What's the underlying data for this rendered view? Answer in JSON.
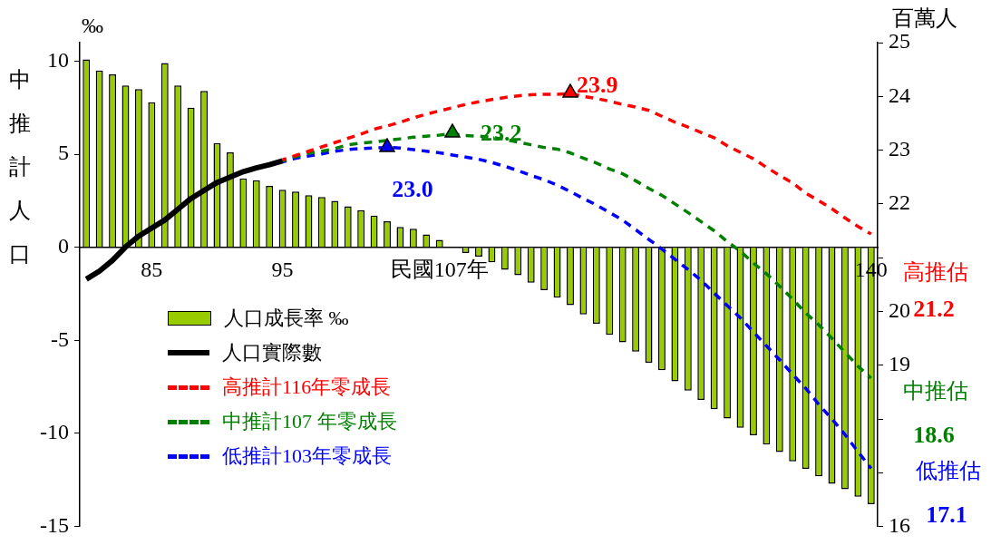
{
  "chart_data": {
    "type": "bar",
    "ylabel": "‰",
    "y2label": "百萬人",
    "categories": [
      null,
      null,
      null,
      null,
      null,
      "85",
      null,
      null,
      null,
      null,
      null,
      null,
      null,
      null,
      null,
      "95",
      null,
      null,
      null,
      null,
      null,
      null,
      null,
      null,
      null,
      null,
      null,
      "民國107年",
      null,
      null,
      null,
      null,
      null,
      null,
      null,
      null,
      null,
      null,
      null,
      null,
      null,
      null,
      null,
      null,
      null,
      null,
      null,
      null,
      null,
      null,
      null,
      null,
      null,
      null,
      null,
      null,
      null,
      null,
      null,
      null,
      "140"
    ],
    "series": [
      {
        "name": "人口成長率 ‰",
        "color": "#99cc00",
        "values": [
          10.1,
          9.5,
          9.3,
          8.7,
          8.5,
          7.8,
          9.9,
          8.7,
          7.5,
          8.4,
          5.6,
          5.1,
          3.7,
          3.6,
          3.3,
          3.1,
          3.0,
          2.8,
          2.7,
          2.5,
          2.2,
          2.0,
          1.7,
          1.4,
          1.1,
          1.0,
          0.7,
          0.4,
          0,
          -0.3,
          -0.5,
          -0.8,
          -1.2,
          -1.5,
          -1.9,
          -2.3,
          -2.7,
          -3.1,
          -3.6,
          -4.1,
          -4.7,
          -5.1,
          -5.6,
          -6.2,
          -6.6,
          -7.2,
          -7.7,
          -8.2,
          -8.7,
          -9.2,
          -9.7,
          -10.1,
          -10.6,
          -11.0,
          -11.5,
          -11.9,
          -12.3,
          -12.7,
          -13.0,
          -13.4,
          -13.8
        ]
      },
      {
        "name": "人口實際數",
        "type": "line",
        "axis": "y2",
        "color": "#000000",
        "line_style": "solid",
        "values": [
          20.6,
          20.75,
          20.95,
          21.2,
          21.4,
          21.55,
          21.7,
          21.9,
          22.1,
          22.25,
          22.4,
          22.5,
          22.6,
          22.67,
          22.73,
          22.8,
          null,
          null,
          null,
          null,
          null,
          null,
          null,
          null,
          null,
          null,
          null,
          null,
          null,
          null,
          null,
          null,
          null,
          null,
          null,
          null,
          null,
          null,
          null,
          null,
          null,
          null,
          null,
          null,
          null,
          null,
          null,
          null,
          null,
          null,
          null,
          null,
          null,
          null,
          null,
          null,
          null,
          null,
          null,
          null,
          null
        ]
      },
      {
        "name": "高推計116年零成長",
        "type": "line",
        "axis": "y2",
        "color": "#ff0000",
        "line_style": "dashed",
        "values": [
          null,
          null,
          null,
          null,
          null,
          null,
          null,
          null,
          null,
          null,
          null,
          null,
          null,
          null,
          null,
          22.82,
          22.9,
          22.98,
          23.06,
          23.14,
          23.22,
          23.3,
          23.39,
          23.45,
          23.52,
          23.6,
          23.67,
          23.73,
          23.79,
          23.85,
          23.9,
          23.94,
          23.98,
          24.01,
          24.03,
          24.04,
          24.04,
          24.05,
          24.0,
          23.96,
          23.91,
          23.85,
          23.8,
          23.74,
          23.63,
          23.52,
          23.43,
          23.33,
          23.23,
          23.08,
          22.96,
          22.84,
          22.68,
          22.53,
          22.39,
          22.2,
          22.06,
          21.91,
          21.74,
          21.58,
          21.44
        ]
      },
      {
        "name": "中推計107 年零成長",
        "type": "line",
        "axis": "y2",
        "color": "#008000",
        "line_style": "dashed",
        "values": [
          null,
          null,
          null,
          null,
          null,
          null,
          null,
          null,
          null,
          null,
          null,
          null,
          null,
          null,
          null,
          22.8,
          22.88,
          22.94,
          22.98,
          23.03,
          23.1,
          23.13,
          23.15,
          23.18,
          23.21,
          23.24,
          23.26,
          23.28,
          23.31,
          23.27,
          23.26,
          23.24,
          23.2,
          23.15,
          23.1,
          23.05,
          23.02,
          22.95,
          22.85,
          22.76,
          22.65,
          22.56,
          22.43,
          22.29,
          22.16,
          22.0,
          21.84,
          21.67,
          21.5,
          21.3,
          21.12,
          20.9,
          20.7,
          20.47,
          20.23,
          19.97,
          19.75,
          19.5,
          19.24,
          18.98,
          18.76
        ]
      },
      {
        "name": "低推計103年零成長",
        "type": "line",
        "axis": "y2",
        "color": "#0000ff",
        "line_style": "dashed",
        "values": [
          null,
          null,
          null,
          null,
          null,
          null,
          null,
          null,
          null,
          null,
          null,
          null,
          null,
          null,
          null,
          22.78,
          22.85,
          22.89,
          22.93,
          22.98,
          23.01,
          23.03,
          23.04,
          23.05,
          23.04,
          23.01,
          22.98,
          22.95,
          22.91,
          22.87,
          22.83,
          22.77,
          22.7,
          22.62,
          22.53,
          22.45,
          22.35,
          22.23,
          22.1,
          21.98,
          21.84,
          21.7,
          21.52,
          21.34,
          21.16,
          20.97,
          20.78,
          20.58,
          20.34,
          20.11,
          19.88,
          19.62,
          19.36,
          19.1,
          18.83,
          18.57,
          18.27,
          18.0,
          17.71,
          17.39,
          17.08
        ]
      }
    ],
    "ylim": [
      -15,
      11
    ],
    "yticks": [
      -15,
      -10,
      -5,
      0,
      5,
      10
    ],
    "y2lim": [
      16,
      25
    ],
    "y2ticks": [
      16,
      {
        "value": 17,
        "label": null
      },
      {
        "value": 18,
        "label": null
      },
      19,
      20,
      {
        "value": 21,
        "label": null
      },
      22,
      23,
      24,
      25
    ],
    "legend": "bottom left",
    "annotations": [
      "23.9",
      "23.2",
      "23.0",
      "高推估",
      "21.2",
      "中推估",
      "18.6",
      "低推估",
      "17.1",
      "中推計人口"
    ]
  }
}
